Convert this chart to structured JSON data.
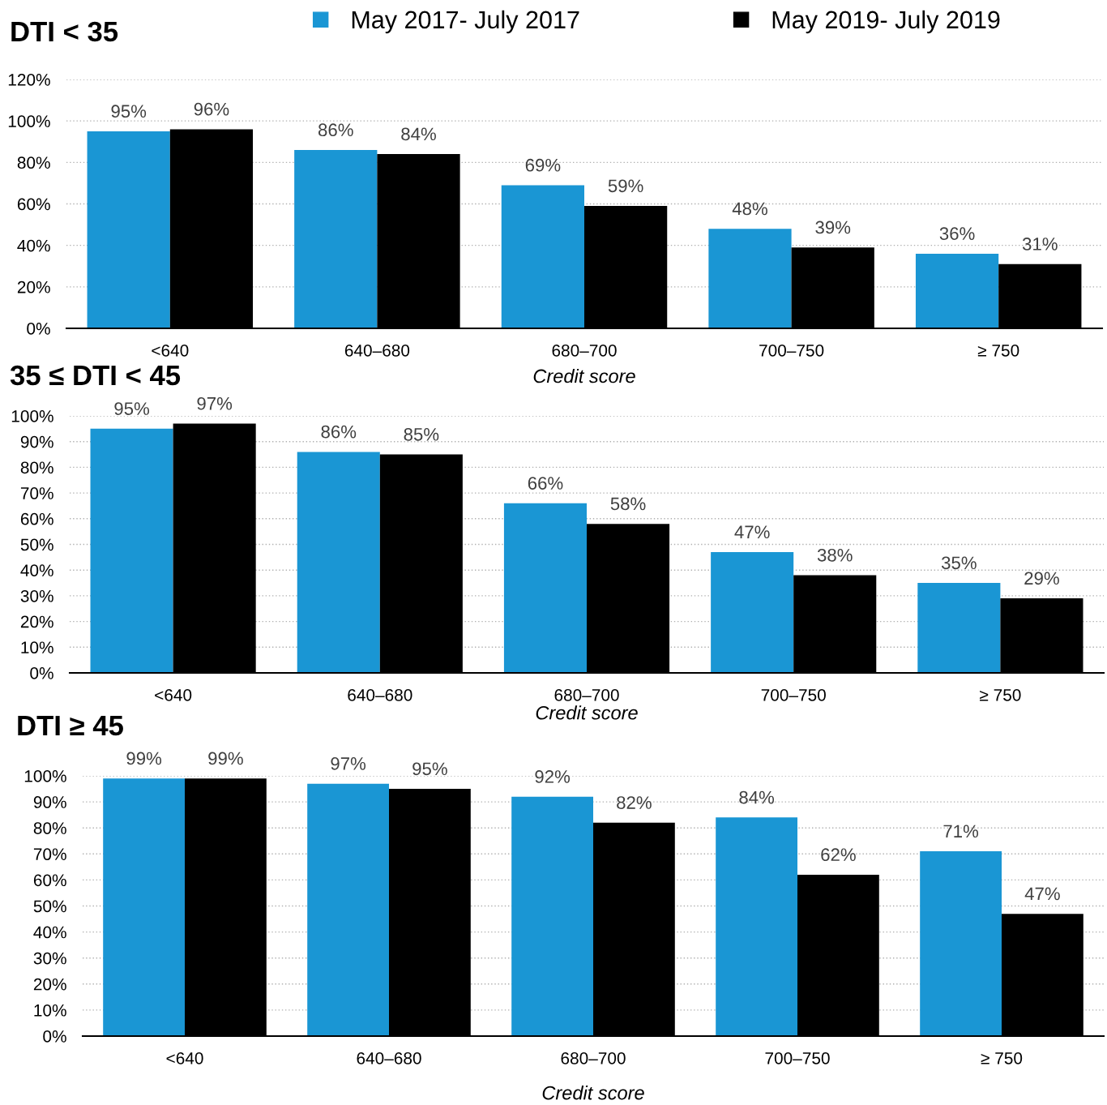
{
  "chart_data": [
    {
      "type": "bar",
      "title": "DTI < 35",
      "xlabel": "Credit score",
      "categories": [
        "<640",
        "640–680",
        "680–700",
        "700–750",
        "≥ 750"
      ],
      "series": [
        {
          "name": "May 2017- July 2017",
          "color": "#1a96d4",
          "values": [
            95,
            86,
            69,
            48,
            36
          ],
          "value_labels": [
            "95%",
            "86%",
            "69%",
            "48%",
            "36%"
          ]
        },
        {
          "name": "May 2019- July 2019",
          "color": "#000000",
          "values": [
            96,
            84,
            59,
            39,
            31
          ],
          "value_labels": [
            "96%",
            "84%",
            "59%",
            "39%",
            "31%"
          ]
        }
      ],
      "ylim": [
        0,
        120
      ],
      "yticks": [
        {
          "value": 0,
          "label": "0%"
        },
        {
          "value": 20,
          "label": "20%"
        },
        {
          "value": 40,
          "label": "40%"
        },
        {
          "value": 60,
          "label": "60%"
        },
        {
          "value": 80,
          "label": "80%"
        },
        {
          "value": 100,
          "label": "100%"
        },
        {
          "value": 120,
          "label": "120%"
        }
      ],
      "grid": "y",
      "legend": "top"
    },
    {
      "type": "bar",
      "title": "35 ≤ DTI < 45",
      "xlabel": "Credit score",
      "categories": [
        "<640",
        "640–680",
        "680–700",
        "700–750",
        "≥ 750"
      ],
      "series": [
        {
          "color": "#1a96d4",
          "values": [
            95,
            86,
            66,
            47,
            35
          ],
          "value_labels": [
            "95%",
            "86%",
            "66%",
            "47%",
            "35%"
          ]
        },
        {
          "color": "#000000",
          "values": [
            97,
            85,
            58,
            38,
            29
          ],
          "value_labels": [
            "97%",
            "85%",
            "58%",
            "38%",
            "29%"
          ]
        }
      ],
      "ylim": [
        0,
        100
      ],
      "yticks": [
        {
          "value": 0,
          "label": "0%"
        },
        {
          "value": 10,
          "label": "10%"
        },
        {
          "value": 20,
          "label": "20%"
        },
        {
          "value": 30,
          "label": "30%"
        },
        {
          "value": 40,
          "label": "40%"
        },
        {
          "value": 50,
          "label": "50%"
        },
        {
          "value": 60,
          "label": "60%"
        },
        {
          "value": 70,
          "label": "70%"
        },
        {
          "value": 80,
          "label": "80%"
        },
        {
          "value": 90,
          "label": "90%"
        },
        {
          "value": 100,
          "label": "100%"
        }
      ],
      "grid": "y"
    },
    {
      "type": "bar",
      "title": "DTI ≥ 45",
      "xlabel": "Credit score",
      "categories": [
        "<640",
        "640–680",
        "680–700",
        "700–750",
        "≥ 750"
      ],
      "series": [
        {
          "color": "#1a96d4",
          "values": [
            99,
            97,
            92,
            84,
            71
          ],
          "value_labels": [
            "99%",
            "97%",
            "92%",
            "84%",
            "71%"
          ]
        },
        {
          "color": "#000000",
          "values": [
            99,
            95,
            82,
            62,
            47
          ],
          "value_labels": [
            "99%",
            "95%",
            "82%",
            "62%",
            "47%"
          ]
        }
      ],
      "ylim": [
        0,
        100
      ],
      "yticks": [
        {
          "value": 0,
          "label": "0%"
        },
        {
          "value": 10,
          "label": "10%"
        },
        {
          "value": 20,
          "label": "20%"
        },
        {
          "value": 30,
          "label": "30%"
        },
        {
          "value": 40,
          "label": "40%"
        },
        {
          "value": 50,
          "label": "50%"
        },
        {
          "value": 60,
          "label": "60%"
        },
        {
          "value": 70,
          "label": "70%"
        },
        {
          "value": 80,
          "label": "80%"
        },
        {
          "value": 90,
          "label": "90%"
        },
        {
          "value": 100,
          "label": "100%"
        }
      ],
      "grid": "y"
    }
  ]
}
